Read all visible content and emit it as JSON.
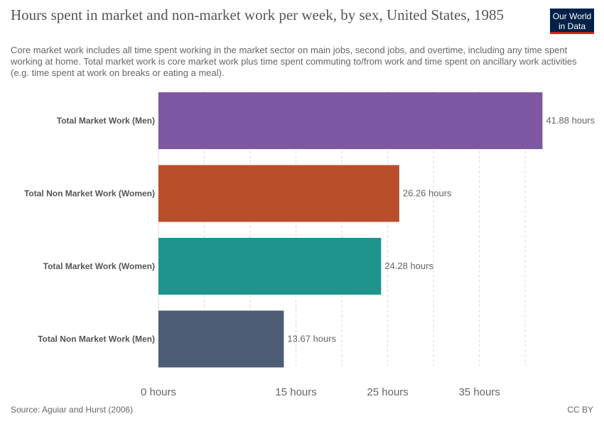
{
  "header": {
    "title": "Hours spent in market and non-market work per week, by sex, United States, 1985",
    "subtitle": "Core market work includes all time spent working in the market sector on main jobs, second jobs, and overtime, including any time spent working at home. Total market work is core market work plus time spent commuting to/from work and time spent on ancillary work activities (e.g. time spent at work on breaks or eating a meal).",
    "logo_line1": "Our World",
    "logo_line2": "in Data"
  },
  "footer": {
    "source": "Source: Aguiar and Hurst (2006)",
    "license": "CC BY"
  },
  "colors": {
    "bars": [
      "#7e57a2",
      "#b84e2a",
      "#1e948d",
      "#4c5d75"
    ],
    "grid": "#dddddd",
    "label": "#555555",
    "value": "#666666"
  },
  "chart_data": {
    "type": "bar",
    "orientation": "horizontal",
    "categories": [
      "Total Market Work (Men)",
      "Total Non Market Work (Women)",
      "Total Market Work (Women)",
      "Total Non Market Work (Men)"
    ],
    "values": [
      41.88,
      26.26,
      24.28,
      13.67
    ],
    "value_labels": [
      "41.88 hours",
      "26.26 hours",
      "24.28 hours",
      "13.67 hours"
    ],
    "xlim": [
      0,
      42
    ],
    "xticks": [
      0,
      15,
      25,
      35
    ],
    "xtick_labels": [
      "0 hours",
      "15 hours",
      "25 hours",
      "35 hours"
    ],
    "grid": true
  }
}
